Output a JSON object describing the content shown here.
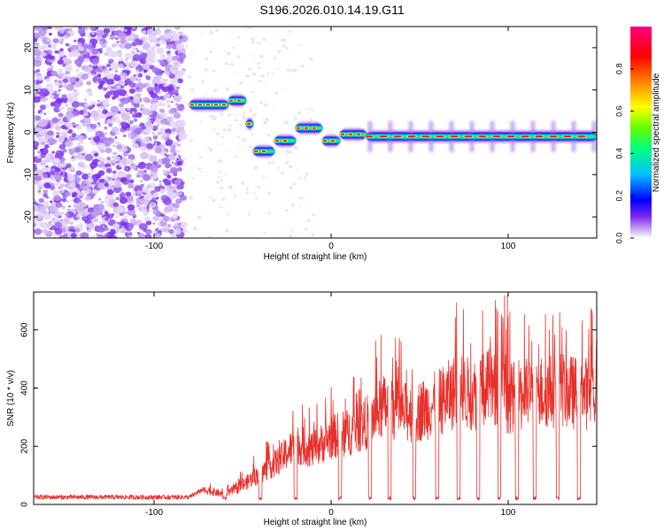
{
  "title": "S196.2026.010.14.19.G11",
  "chart_data": [
    {
      "type": "heatmap",
      "xlabel": "Height of straight line (km)",
      "ylabel": "Frequency (Hz)",
      "xlim": [
        -168,
        150
      ],
      "ylim": [
        -25,
        25
      ],
      "x_ticks": [
        "-100",
        "0",
        "100"
      ],
      "x_tick_values": [
        -100,
        0,
        100
      ],
      "y_ticks": [
        "20",
        "10",
        "0",
        "-10",
        "-20"
      ],
      "y_tick_values": [
        20,
        10,
        0,
        -10,
        -20
      ],
      "colorbar": {
        "label": "Normalized spectral amplitude",
        "range": [
          0,
          1
        ],
        "ticks": [
          "0.0",
          "0.2",
          "0.4",
          "0.6",
          "0.8"
        ],
        "tick_values": [
          0.0,
          0.2,
          0.4,
          0.6,
          0.8
        ],
        "colors": [
          "#ffffff",
          "#c8a8f0",
          "#7a2cf0",
          "#0000ff",
          "#00bfff",
          "#00ff80",
          "#a0ff00",
          "#ffff00",
          "#ff8000",
          "#ff0000",
          "#ff0080"
        ]
      },
      "ridge_segments": [
        {
          "x": [
            -80,
            -58
          ],
          "freq": 6.5
        },
        {
          "x": [
            -58,
            -48
          ],
          "freq": 7.5
        },
        {
          "x": [
            -48,
            -44
          ],
          "freq": 2
        },
        {
          "x": [
            -44,
            -32
          ],
          "freq": -4.5
        },
        {
          "x": [
            -32,
            -20
          ],
          "freq": -2
        },
        {
          "x": [
            -20,
            -5
          ],
          "freq": 1
        },
        {
          "x": [
            -5,
            5
          ],
          "freq": -2
        },
        {
          "x": [
            5,
            20
          ],
          "freq": -0.5
        },
        {
          "x": [
            20,
            150
          ],
          "freq": -1
        }
      ]
    },
    {
      "type": "line",
      "xlabel": "Height of straight line (km)",
      "ylabel": "SNR (10 * v/v)",
      "xlim": [
        -168,
        150
      ],
      "ylim": [
        0,
        730
      ],
      "x_ticks": [
        "-100",
        "0",
        "100"
      ],
      "x_tick_values": [
        -100,
        0,
        100
      ],
      "y_ticks": [
        "0",
        "200",
        "400",
        "600"
      ],
      "y_tick_values": [
        0,
        200,
        400,
        600
      ],
      "series": [
        {
          "name": "SNR",
          "color": "#e8302a",
          "baseline_level": {
            "x": [
              -168,
              -60
            ],
            "y": 25
          },
          "envelope": {
            "x": [
              -168,
              -80,
              -70,
              -60,
              -50,
              -40,
              -30,
              -20,
              -10,
              0,
              10,
              20,
              30,
              40,
              50,
              60,
              70,
              80,
              90,
              100,
              110,
              120,
              130,
              140,
              150
            ],
            "y": [
              25,
              25,
              60,
              40,
              80,
              130,
              180,
              250,
              230,
              280,
              300,
              340,
              410,
              380,
              390,
              420,
              470,
              460,
              490,
              440,
              460,
              470,
              480,
              460,
              470
            ]
          },
          "dropouts_x": [
            -60,
            -40,
            -20,
            5,
            22,
            33,
            47,
            60,
            72,
            83,
            95,
            105,
            115,
            128,
            140
          ]
        }
      ]
    }
  ]
}
